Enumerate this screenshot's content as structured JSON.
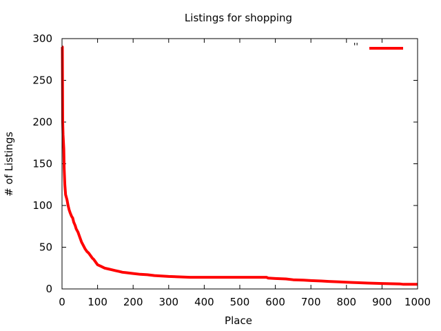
{
  "chart_data": {
    "type": "line",
    "title": "Listings for shopping",
    "xlabel": "Place",
    "ylabel": "# of Listings",
    "xlim": [
      0,
      1000
    ],
    "ylim": [
      0,
      300
    ],
    "xticks": [
      "0",
      "100",
      "200",
      "300",
      "400",
      "500",
      "600",
      "700",
      "800",
      "900",
      "1000"
    ],
    "yticks": [
      "0",
      "50",
      "100",
      "150",
      "200",
      "250",
      "300"
    ],
    "legend": {
      "position": "top-right",
      "label": "''"
    },
    "grid": false,
    "series": [
      {
        "color": "#ff0000",
        "points": [
          [
            0,
            290
          ],
          [
            1,
            290
          ],
          [
            2,
            200
          ],
          [
            3,
            185
          ],
          [
            5,
            168
          ],
          [
            6,
            145
          ],
          [
            8,
            125
          ],
          [
            10,
            113
          ],
          [
            14,
            107
          ],
          [
            17,
            100
          ],
          [
            20,
            95
          ],
          [
            23,
            91
          ],
          [
            27,
            87
          ],
          [
            30,
            85
          ],
          [
            33,
            80
          ],
          [
            37,
            76
          ],
          [
            40,
            72
          ],
          [
            45,
            68
          ],
          [
            50,
            62
          ],
          [
            55,
            56
          ],
          [
            60,
            52
          ],
          [
            65,
            48
          ],
          [
            70,
            45
          ],
          [
            75,
            43
          ],
          [
            80,
            40
          ],
          [
            85,
            37
          ],
          [
            90,
            35
          ],
          [
            95,
            32
          ],
          [
            100,
            29
          ],
          [
            110,
            27
          ],
          [
            120,
            25
          ],
          [
            130,
            24
          ],
          [
            140,
            23
          ],
          [
            150,
            22
          ],
          [
            160,
            21
          ],
          [
            170,
            20
          ],
          [
            180,
            19.5
          ],
          [
            200,
            18.5
          ],
          [
            220,
            17.5
          ],
          [
            240,
            17
          ],
          [
            260,
            16
          ],
          [
            280,
            15.5
          ],
          [
            300,
            15
          ],
          [
            330,
            14.5
          ],
          [
            360,
            14
          ],
          [
            400,
            14
          ],
          [
            450,
            14
          ],
          [
            500,
            14
          ],
          [
            550,
            14
          ],
          [
            575,
            14
          ],
          [
            580,
            13
          ],
          [
            600,
            12.5
          ],
          [
            630,
            12
          ],
          [
            650,
            11
          ],
          [
            680,
            10.5
          ],
          [
            700,
            10
          ],
          [
            730,
            9.5
          ],
          [
            750,
            9
          ],
          [
            780,
            8.5
          ],
          [
            800,
            8
          ],
          [
            830,
            7.5
          ],
          [
            860,
            7
          ],
          [
            900,
            6.5
          ],
          [
            950,
            6
          ],
          [
            960,
            5.5
          ],
          [
            1000,
            5.5
          ]
        ]
      }
    ]
  }
}
